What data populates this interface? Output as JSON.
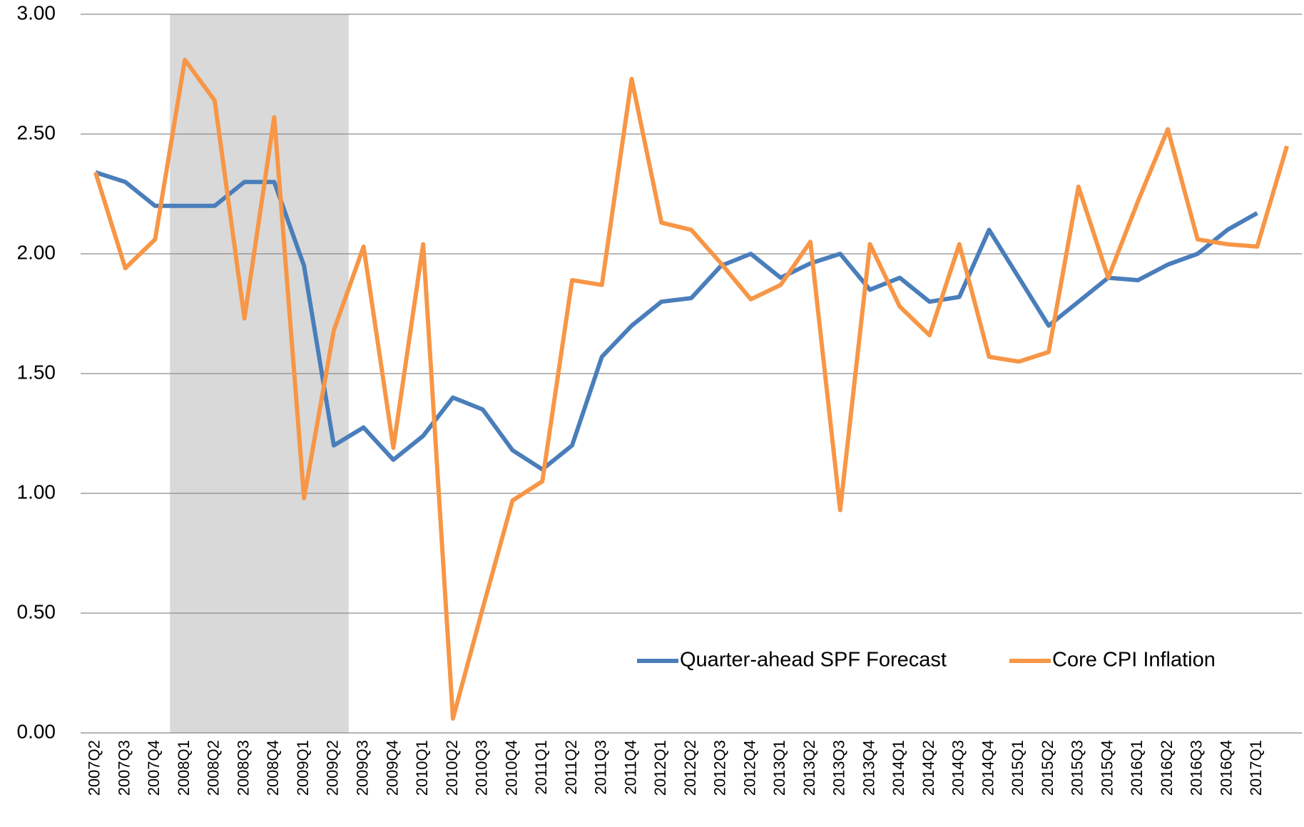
{
  "chart_data": {
    "type": "line",
    "categories": [
      "2007Q2",
      "2007Q3",
      "2007Q4",
      "2008Q1",
      "2008Q2",
      "2008Q3",
      "2008Q4",
      "2009Q1",
      "2009Q2",
      "2009Q3",
      "2009Q4",
      "2010Q1",
      "2010Q2",
      "2010Q3",
      "2010Q4",
      "2011Q1",
      "2011Q2",
      "2011Q3",
      "2011Q4",
      "2012Q1",
      "2012Q2",
      "2012Q3",
      "2012Q4",
      "2013Q1",
      "2013Q2",
      "2013Q3",
      "2013Q4",
      "2014Q1",
      "2014Q2",
      "2014Q3",
      "2014Q4",
      "2015Q1",
      "2015Q2",
      "2015Q3",
      "2015Q4",
      "2016Q1",
      "2016Q2",
      "2016Q3",
      "2016Q4",
      "2017Q1",
      null
    ],
    "series": [
      {
        "name": "Quarter-ahead SPF Forecast",
        "color": "#4a7ebb",
        "values": [
          2.34,
          2.3,
          2.2,
          2.2,
          2.2,
          2.3,
          2.3,
          1.95,
          1.2,
          1.275,
          1.14,
          1.24,
          1.4,
          1.35,
          1.18,
          1.1,
          1.2,
          1.57,
          1.7,
          1.8,
          1.815,
          1.95,
          2.0,
          1.9,
          1.96,
          2.0,
          1.85,
          1.9,
          1.8,
          1.82,
          2.1,
          1.9,
          1.7,
          1.8,
          1.9,
          1.89,
          1.955,
          2.0,
          2.1,
          2.17,
          null
        ]
      },
      {
        "name": "Core CPI Inflation",
        "color": "#f79646",
        "values": [
          2.34,
          1.94,
          2.06,
          2.81,
          2.64,
          1.73,
          2.57,
          0.98,
          1.68,
          2.03,
          1.19,
          2.04,
          0.06,
          0.52,
          0.97,
          1.05,
          1.89,
          1.87,
          2.73,
          2.13,
          2.1,
          1.96,
          1.81,
          1.87,
          2.05,
          0.93,
          2.04,
          1.78,
          1.66,
          2.04,
          1.57,
          1.55,
          1.59,
          2.28,
          1.9,
          2.22,
          2.52,
          2.06,
          2.04,
          2.03,
          2.45
        ]
      }
    ],
    "ylim": [
      0,
      3
    ],
    "yticks": [
      {
        "value": 0,
        "label": "0.00"
      },
      {
        "value": 0.5,
        "label": "0.50"
      },
      {
        "value": 1,
        "label": "1.00"
      },
      {
        "value": 1.5,
        "label": "1.50"
      },
      {
        "value": 2,
        "label": "2.00"
      },
      {
        "value": 2.5,
        "label": "2.50"
      },
      {
        "value": 3,
        "label": "3.00"
      }
    ],
    "grid": true,
    "shade": {
      "start": "2008Q1",
      "end": "2009Q2",
      "color": "#d9d9d9"
    }
  }
}
